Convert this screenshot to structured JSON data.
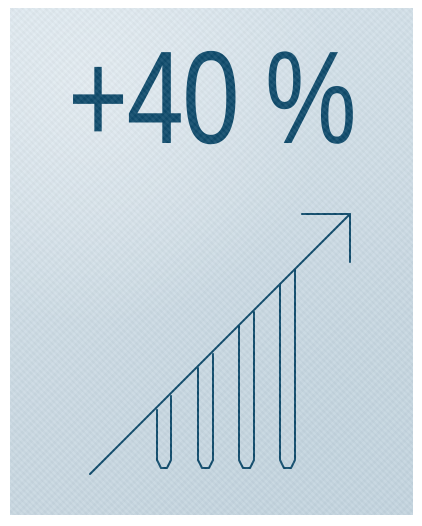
{
  "headline": {
    "text": "+40 %"
  },
  "colors": {
    "ink": "#0e4a6b",
    "background": "#cfdde6"
  },
  "icons": {
    "graphic": "rising-bars-arrow-icon"
  }
}
